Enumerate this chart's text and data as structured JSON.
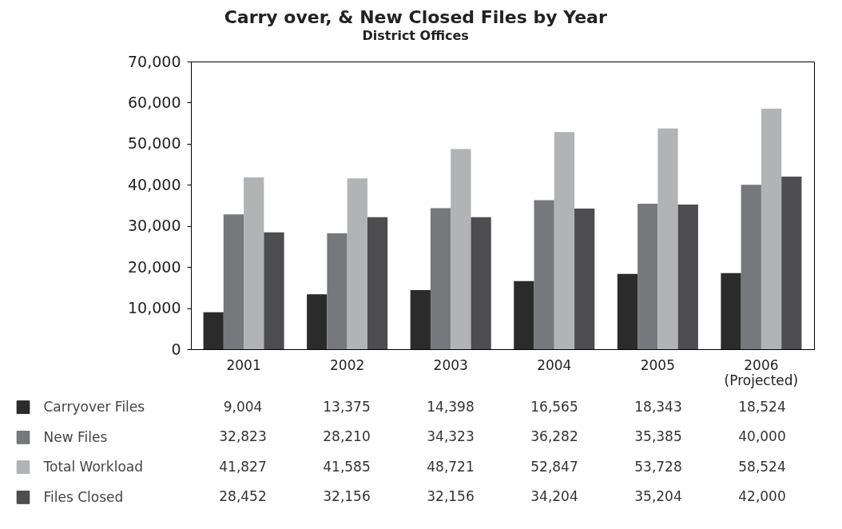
{
  "chart_data": {
    "type": "bar",
    "title": "Carry over, & New Closed Files by Year",
    "subtitle": "District Offices",
    "categories": [
      "2001",
      "2002",
      "2003",
      "2004",
      "2005",
      "2006 (Projected)"
    ],
    "series": [
      {
        "name": "Carryover Files",
        "color": "#2b2b2b",
        "values": [
          9004,
          13375,
          14398,
          16565,
          18343,
          18524
        ],
        "value_labels": [
          "9,004",
          "13,375",
          "14,398",
          "16,565",
          "18,343",
          "18,524"
        ]
      },
      {
        "name": "New Files",
        "color": "#77787b",
        "values": [
          32823,
          28210,
          34323,
          36282,
          35385,
          40000
        ],
        "value_labels": [
          "32,823",
          "28,210",
          "34,323",
          "36,282",
          "35,385",
          "40,000"
        ]
      },
      {
        "name": "Total Workload",
        "color": "#b1b3b5",
        "values": [
          41827,
          41585,
          48721,
          52847,
          53728,
          58524
        ],
        "value_labels": [
          "41,827",
          "41,585",
          "48,721",
          "52,847",
          "53,728",
          "58,524"
        ]
      },
      {
        "name": "Files Closed",
        "color": "#4d4d4f",
        "values": [
          28452,
          32156,
          32156,
          34204,
          35204,
          42000
        ],
        "value_labels": [
          "28,452",
          "32,156",
          "32,156",
          "34,204",
          "35,204",
          "42,000"
        ]
      }
    ],
    "ylim": [
      0,
      70000
    ],
    "yticks": [
      0,
      {
        "value": 10000,
        "label": "10,000"
      },
      {
        "value": 20000,
        "label": "20,000"
      },
      {
        "value": 30000,
        "label": "30,000"
      },
      {
        "value": 40000,
        "label": "40,000"
      },
      {
        "value": 50000,
        "label": "50,000"
      },
      {
        "value": 60000,
        "label": "60,000"
      },
      {
        "value": 70000,
        "label": "70,000"
      }
    ],
    "grid": false,
    "legend": "bottom"
  }
}
